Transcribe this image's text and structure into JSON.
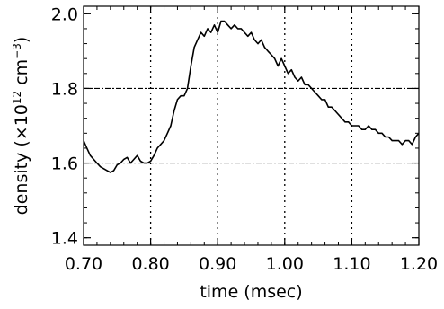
{
  "chart_data": {
    "type": "line",
    "title": "",
    "xlabel": "time (msec)",
    "ylabel_parts": {
      "before": "density (×10",
      "exp1": "12",
      "mid": " cm",
      "exp2": "−3",
      "after": ")"
    },
    "xlim": [
      0.7,
      1.2
    ],
    "ylim": [
      1.38,
      2.02
    ],
    "x_ticks": [
      {
        "value": 0.7,
        "label": "0.70"
      },
      {
        "value": 0.8,
        "label": "0.80"
      },
      {
        "value": 0.9,
        "label": "0.90"
      },
      {
        "value": 1.0,
        "label": "1.00"
      },
      {
        "value": 1.1,
        "label": "1.10"
      },
      {
        "value": 1.2,
        "label": "1.20"
      }
    ],
    "y_ticks": [
      {
        "value": 1.4,
        "label": "1.4"
      },
      {
        "value": 1.6,
        "label": "1.6"
      },
      {
        "value": 1.8,
        "label": "1.8"
      },
      {
        "value": 2.0,
        "label": "2.0"
      }
    ],
    "reference_lines": {
      "vertical_dotted": [
        0.8,
        0.9,
        1.0,
        1.1
      ],
      "horizontal_dashed": [
        1.6,
        1.8
      ]
    },
    "series": [
      {
        "color": "#000000",
        "x": [
          0.7,
          0.705,
          0.71,
          0.715,
          0.72,
          0.725,
          0.73,
          0.735,
          0.74,
          0.745,
          0.75,
          0.755,
          0.76,
          0.765,
          0.77,
          0.775,
          0.78,
          0.785,
          0.79,
          0.795,
          0.8,
          0.805,
          0.81,
          0.815,
          0.82,
          0.825,
          0.83,
          0.835,
          0.84,
          0.845,
          0.85,
          0.855,
          0.86,
          0.865,
          0.87,
          0.875,
          0.88,
          0.885,
          0.89,
          0.895,
          0.9,
          0.905,
          0.91,
          0.915,
          0.92,
          0.925,
          0.93,
          0.935,
          0.94,
          0.945,
          0.95,
          0.955,
          0.96,
          0.965,
          0.97,
          0.975,
          0.98,
          0.985,
          0.99,
          0.995,
          1.0,
          1.005,
          1.01,
          1.015,
          1.02,
          1.025,
          1.03,
          1.035,
          1.04,
          1.045,
          1.05,
          1.055,
          1.06,
          1.065,
          1.07,
          1.075,
          1.08,
          1.085,
          1.09,
          1.095,
          1.1,
          1.105,
          1.11,
          1.115,
          1.12,
          1.125,
          1.13,
          1.135,
          1.14,
          1.145,
          1.15,
          1.155,
          1.16,
          1.165,
          1.17,
          1.175,
          1.18,
          1.185,
          1.19,
          1.195,
          1.2
        ],
        "y": [
          1.66,
          1.64,
          1.62,
          1.61,
          1.6,
          1.59,
          1.585,
          1.58,
          1.575,
          1.58,
          1.595,
          1.6,
          1.61,
          1.615,
          1.6,
          1.61,
          1.62,
          1.605,
          1.6,
          1.6,
          1.605,
          1.62,
          1.64,
          1.65,
          1.66,
          1.68,
          1.7,
          1.74,
          1.77,
          1.78,
          1.78,
          1.8,
          1.86,
          1.91,
          1.93,
          1.95,
          1.94,
          1.96,
          1.95,
          1.97,
          1.95,
          1.98,
          1.98,
          1.97,
          1.96,
          1.97,
          1.96,
          1.96,
          1.95,
          1.94,
          1.95,
          1.93,
          1.92,
          1.93,
          1.91,
          1.9,
          1.89,
          1.88,
          1.86,
          1.88,
          1.86,
          1.84,
          1.85,
          1.83,
          1.82,
          1.83,
          1.81,
          1.81,
          1.8,
          1.79,
          1.78,
          1.77,
          1.77,
          1.75,
          1.75,
          1.74,
          1.73,
          1.72,
          1.71,
          1.71,
          1.7,
          1.7,
          1.7,
          1.69,
          1.69,
          1.7,
          1.69,
          1.69,
          1.68,
          1.68,
          1.67,
          1.67,
          1.66,
          1.66,
          1.66,
          1.65,
          1.66,
          1.66,
          1.65,
          1.67,
          1.68
        ]
      }
    ]
  }
}
